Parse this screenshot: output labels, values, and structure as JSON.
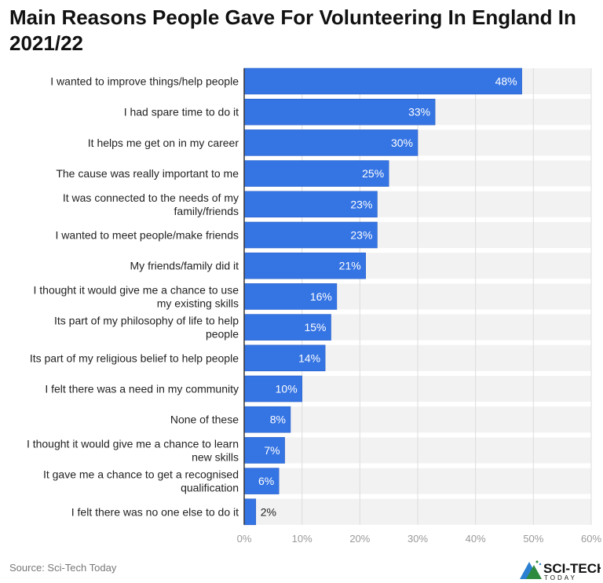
{
  "chart_data": {
    "type": "bar",
    "orientation": "horizontal",
    "title": "Main Reasons People Gave For Volunteering In England In 2021/22",
    "categories": [
      [
        "I wanted to improve things/help people"
      ],
      [
        "I had spare time to do it"
      ],
      [
        "It helps me get on in my career"
      ],
      [
        "The cause was really important to me"
      ],
      [
        "It was connected to the needs of my",
        "family/friends"
      ],
      [
        "I wanted to meet people/make friends"
      ],
      [
        "My friends/family did it"
      ],
      [
        "I thought it would give me a chance to use",
        "my existing skills"
      ],
      [
        "Its part of my philosophy of life to help",
        "people"
      ],
      [
        "Its part of my religious belief to help people"
      ],
      [
        "I felt there was a need in my community"
      ],
      [
        "None of these"
      ],
      [
        "I thought it would give me a chance to learn",
        "new skills"
      ],
      [
        "It gave me a chance to get a recognised",
        "qualification"
      ],
      [
        "I felt there was no one else to do it"
      ]
    ],
    "values": [
      48,
      33,
      30,
      25,
      23,
      23,
      21,
      16,
      15,
      14,
      10,
      8,
      7,
      6,
      2
    ],
    "data_labels": [
      "48%",
      "33%",
      "30%",
      "25%",
      "23%",
      "23%",
      "21%",
      "16%",
      "15%",
      "14%",
      "10%",
      "8%",
      "7%",
      "6%",
      "2%"
    ],
    "xlim": [
      0,
      60
    ],
    "x_ticks": [
      "0%",
      "10%",
      "20%",
      "30%",
      "40%",
      "50%",
      "60%"
    ],
    "grid": true,
    "bar_color": "#3574e3"
  },
  "source": "Source: Sci-Tech Today",
  "logo": {
    "text": "SCI-TECH",
    "sub": "TODAY"
  }
}
